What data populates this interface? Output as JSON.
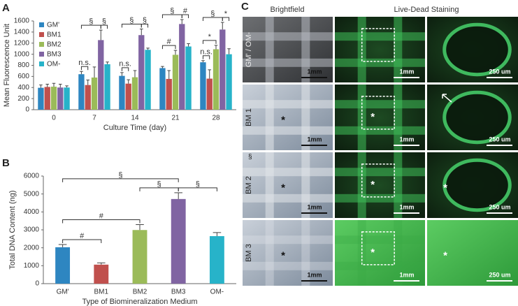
{
  "chart_data": [
    {
      "type": "bar",
      "panel_label": "A",
      "x_label": "Culture Time (day)",
      "y_label": "Mean Fluorescence Unit",
      "categories": [
        "0",
        "7",
        "14",
        "21",
        "28"
      ],
      "series": [
        {
          "name": "GM'",
          "color": "#2e86c1",
          "values": [
            395,
            640,
            610,
            750,
            855
          ],
          "errors": [
            50,
            50,
            60,
            30,
            30
          ]
        },
        {
          "name": "BM1",
          "color": "#c0504d",
          "values": [
            410,
            445,
            470,
            555,
            560
          ],
          "errors": [
            50,
            90,
            70,
            150,
            160
          ]
        },
        {
          "name": "BM2",
          "color": "#9bbb59",
          "values": [
            415,
            580,
            585,
            990,
            1090
          ],
          "errors": [
            60,
            190,
            120,
            80,
            70
          ]
        },
        {
          "name": "BM3",
          "color": "#8064a2",
          "values": [
            400,
            1255,
            1345,
            1545,
            1445
          ],
          "errors": [
            60,
            180,
            110,
            80,
            130
          ]
        },
        {
          "name": "OM-",
          "color": "#27b3c9",
          "values": [
            400,
            820,
            1080,
            1140,
            1000
          ],
          "errors": [
            30,
            40,
            30,
            50,
            100
          ]
        }
      ],
      "ylim": [
        0,
        1600
      ],
      "yticks": [
        0,
        200,
        400,
        600,
        800,
        1000,
        1200,
        1400,
        1600
      ],
      "grid": false,
      "legend": "upper-left",
      "annotations": [
        {
          "text": "n.s.",
          "category": 1,
          "between": [
            0,
            1
          ]
        },
        {
          "text": "§",
          "category": 1,
          "between": [
            3,
            4
          ]
        },
        {
          "text": "§",
          "category": 1,
          "between": [
            0,
            3
          ]
        },
        {
          "text": "n.s.",
          "category": 2,
          "between": [
            0,
            1
          ]
        },
        {
          "text": "§",
          "category": 2,
          "between": [
            3,
            4
          ]
        },
        {
          "text": "§",
          "category": 2,
          "between": [
            0,
            3
          ]
        },
        {
          "text": "#",
          "category": 3,
          "between": [
            0,
            2
          ]
        },
        {
          "text": "#",
          "category": 3,
          "between": [
            3,
            4
          ]
        },
        {
          "text": "§",
          "category": 3,
          "between": [
            0,
            3
          ]
        },
        {
          "text": "n.s.",
          "category": 4,
          "between": [
            0,
            1
          ]
        },
        {
          "text": "*",
          "category": 4,
          "between": [
            0,
            2
          ]
        },
        {
          "text": "*",
          "category": 4,
          "between": [
            3,
            4
          ]
        },
        {
          "text": "§",
          "category": 4,
          "between": [
            0,
            3
          ]
        }
      ]
    },
    {
      "type": "bar",
      "panel_label": "B",
      "x_label": "Type of Biomineralization Medium",
      "y_label": "Total DNA Content (ng)",
      "categories": [
        "GM'",
        "BM1",
        "BM2",
        "BM3",
        "OM-"
      ],
      "values": [
        2030,
        1060,
        2990,
        4720,
        2650
      ],
      "errors": [
        150,
        100,
        300,
        350,
        200
      ],
      "colors": [
        "#2e86c1",
        "#c0504d",
        "#9bbb59",
        "#8064a2",
        "#27b3c9"
      ],
      "ylim": [
        0,
        6000
      ],
      "yticks": [
        0,
        1000,
        2000,
        3000,
        4000,
        5000,
        6000
      ],
      "grid": false,
      "annotations": [
        {
          "text": "#",
          "between": [
            0,
            1
          ]
        },
        {
          "text": "#",
          "between": [
            0,
            2
          ]
        },
        {
          "text": "§",
          "between": [
            2,
            3
          ]
        },
        {
          "text": "§",
          "between": [
            3,
            4
          ]
        },
        {
          "text": "§",
          "between": [
            0,
            3
          ]
        }
      ]
    }
  ],
  "panel_c": {
    "label": "C",
    "columns": [
      "Brightfield",
      "Live-Dead Staining"
    ],
    "scale_bars": [
      "1mm",
      "1mm",
      "250 um"
    ],
    "rows": [
      {
        "label": "GM' / OM-"
      },
      {
        "label": "BM 1",
        "marks": [
          "*",
          "*"
        ]
      },
      {
        "label": "BM 2",
        "marks": [
          "*",
          "*",
          "*"
        ],
        "corner_mark": "§"
      },
      {
        "label": "BM 3",
        "marks": [
          "*",
          "*",
          "*"
        ]
      }
    ]
  }
}
